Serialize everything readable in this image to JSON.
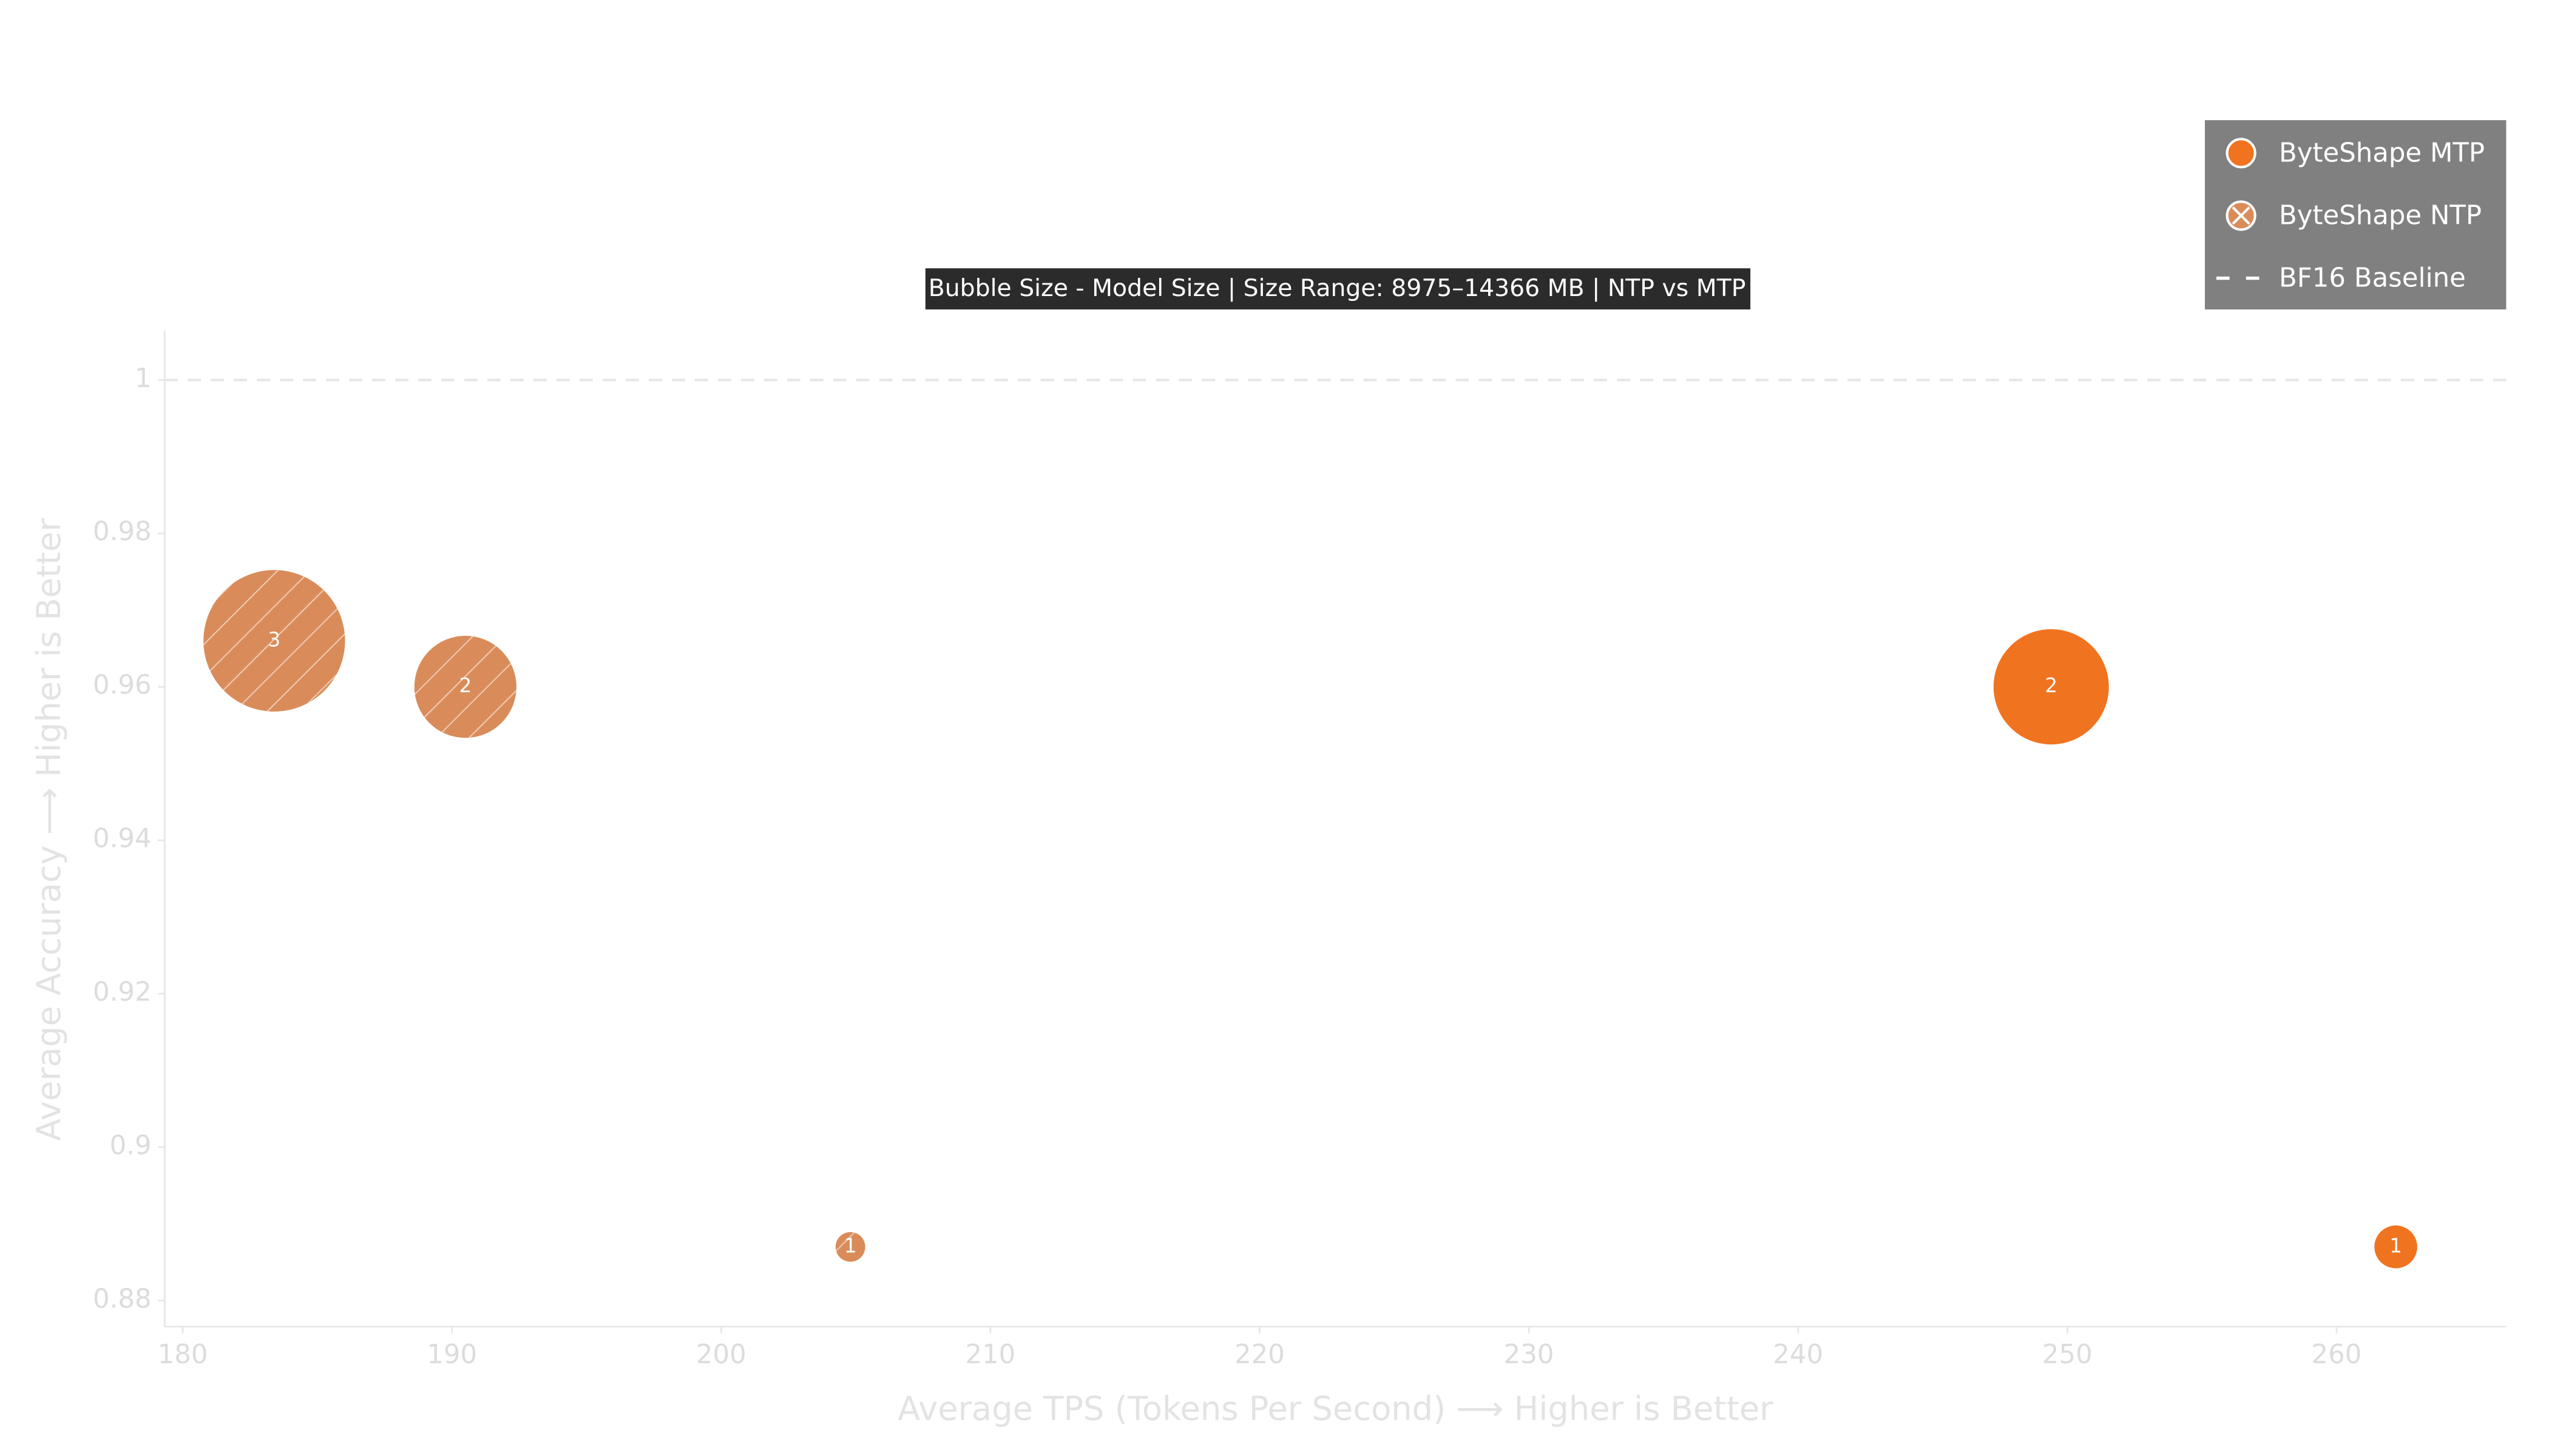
{
  "chart_data": {
    "type": "bubble",
    "title": "Bubble Size - Model Size | Size Range: 8975–14366 MB | NTP vs MTP",
    "x_label": "Average TPS (Tokens Per Second) ⟶ Higher is Better",
    "y_label": "Average Accuracy ⟶ Higher is Better",
    "xlim": [
      179.33,
      266.3
    ],
    "ylim": [
      0.8766,
      1.0064
    ],
    "xticks": [
      180,
      190,
      200,
      210,
      220,
      230,
      240,
      250,
      260
    ],
    "yticks": [
      0.88,
      0.9,
      0.92,
      0.94,
      0.96,
      0.98,
      1
    ],
    "legend_position": "upper right",
    "baseline": {
      "name": "BF16 Baseline",
      "value": 1,
      "color": "#e6e6e6"
    },
    "series": [
      {
        "name": "ByteShape MTP",
        "color": "#f07320",
        "hatch": false,
        "x": [
          262.2,
          249.4
        ],
        "values": [
          0.887,
          0.96
        ],
        "sizes": [
          9609,
          13098
        ],
        "labels": [
          "1",
          "2"
        ]
      },
      {
        "name": "ByteShape NTP",
        "color": "#d98c5a",
        "hatch": true,
        "x": [
          204.8,
          190.5,
          183.4
        ],
        "values": [
          0.887,
          0.96,
          0.966
        ],
        "sizes": [
          8975,
          12463,
          14366
        ],
        "labels": [
          "1",
          "2",
          "3"
        ]
      }
    ]
  }
}
